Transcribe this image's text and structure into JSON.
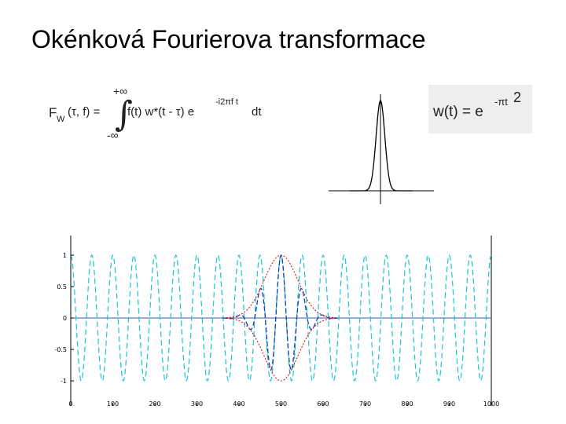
{
  "title": "Okénková Fourierova transformace",
  "stft_formula": {
    "lhs_F": "F",
    "lhs_sub": "W",
    "lhs_args": "(τ, f) =",
    "upper_limit": "+∞",
    "integral": "∫",
    "integrand": "f(t) w*(t - τ) e",
    "exponent": "-i2πf t",
    "dt": "dt",
    "lower_limit": "-∞"
  },
  "window_formula": {
    "lhs": "w(t) = e",
    "exponent": "-πt",
    "power": "2"
  },
  "colors": {
    "cosine": "#19c6d1",
    "windowed": "#1a3fb0",
    "envelope": "#d11a1a",
    "axis": "#000000"
  },
  "chart_data": {
    "type": "line",
    "x_ticks": [
      "0",
      "100",
      "200",
      "300",
      "400",
      "500",
      "600",
      "700",
      "800",
      "900",
      "1000"
    ],
    "y_ticks": [
      "-1",
      "-0.5",
      "0",
      "0.5",
      "1"
    ],
    "xlim": [
      0,
      1000
    ],
    "ylim": [
      -1,
      1
    ],
    "cosine_period": 50,
    "window_center": 500,
    "window_width": 100,
    "series_style": [
      "dashed cyan cosine",
      "dashed blue windowed cosine",
      "dotted red Gaussian envelope"
    ]
  }
}
